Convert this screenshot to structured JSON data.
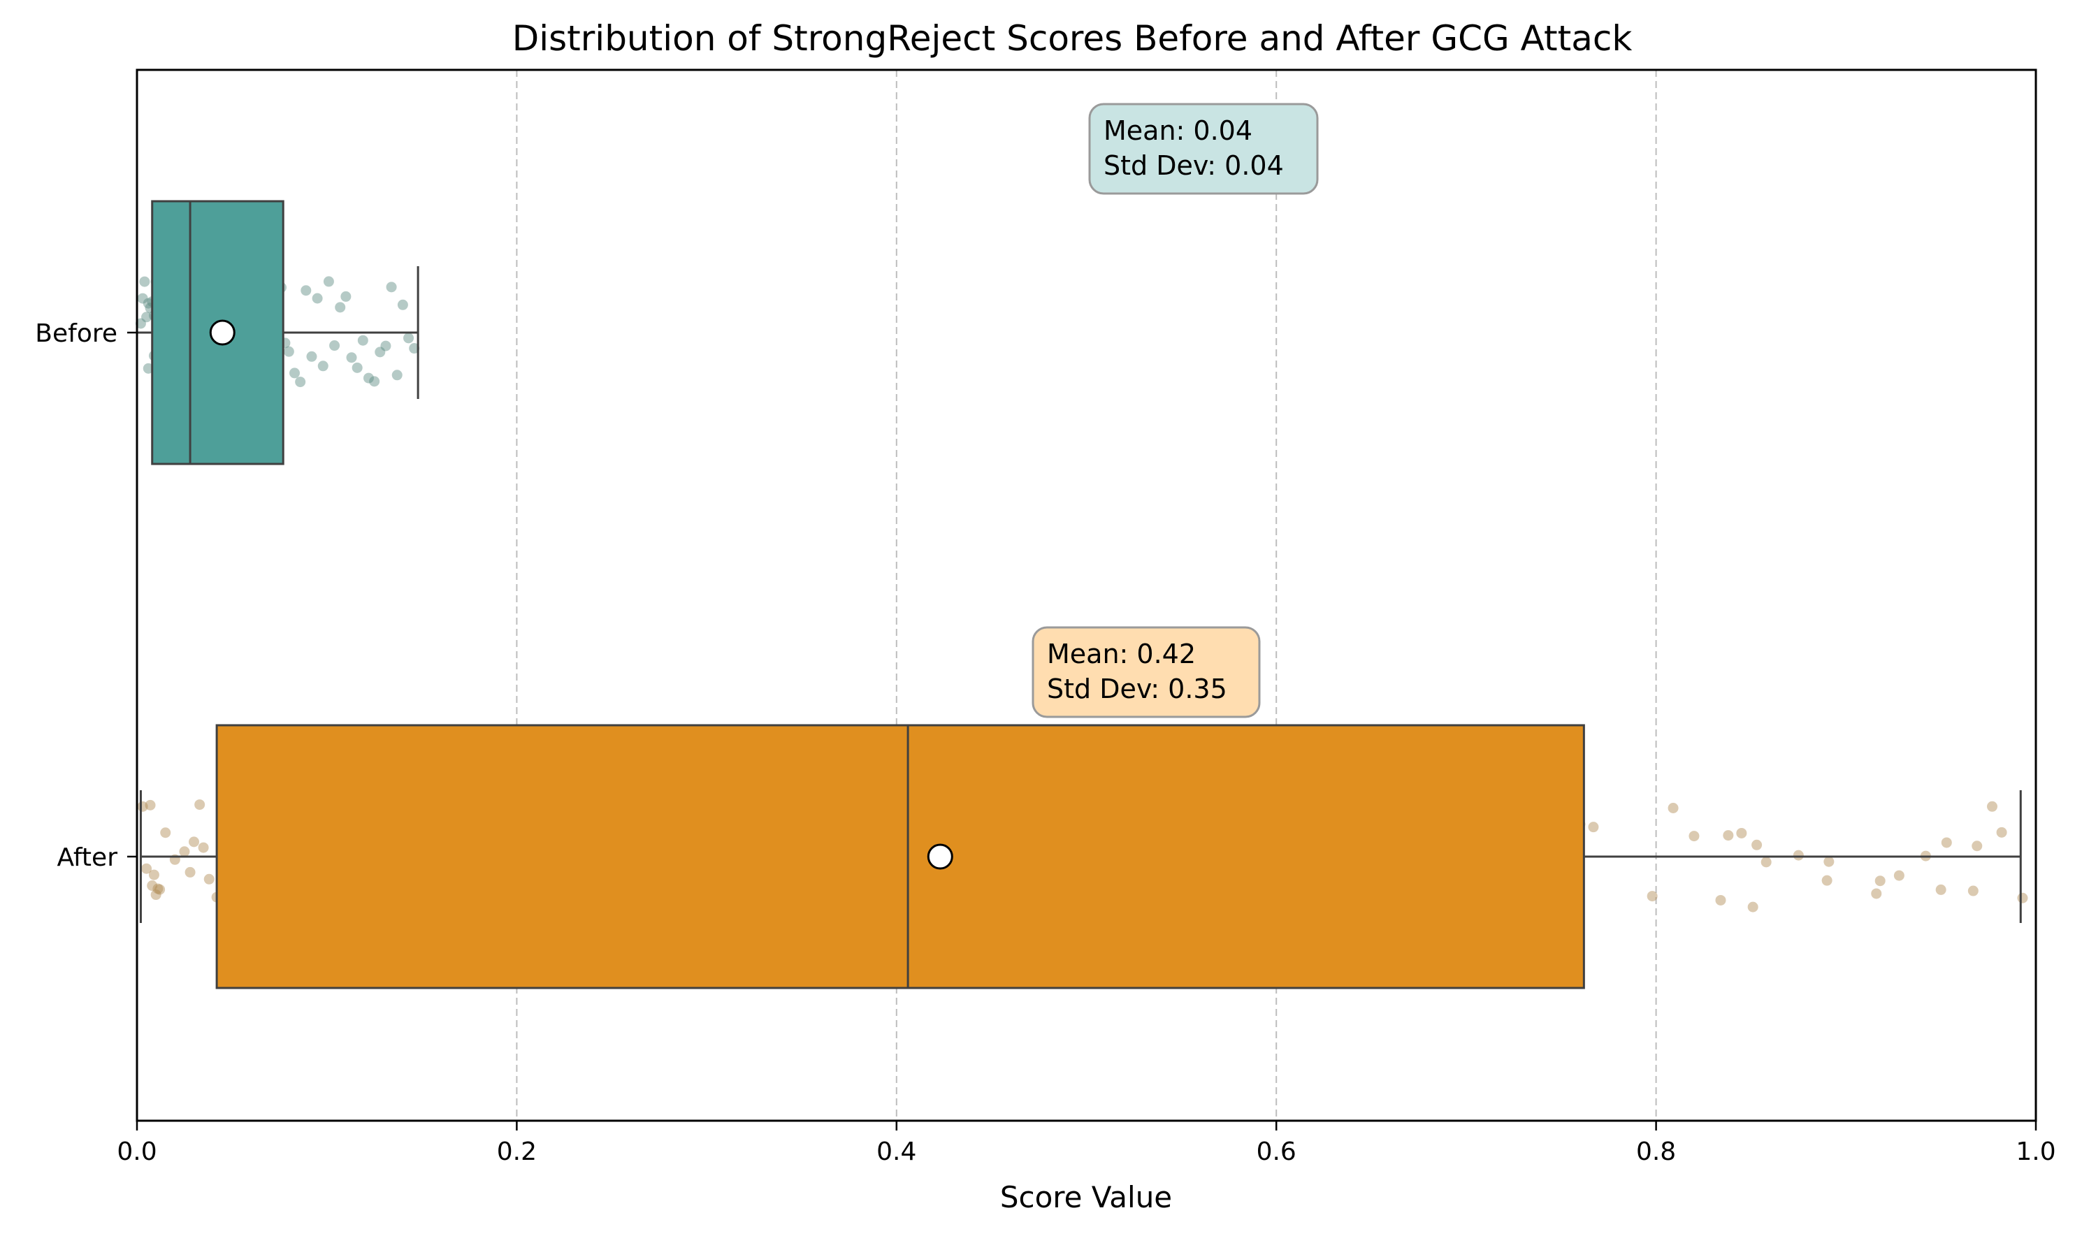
{
  "chart_data": {
    "type": "boxplot",
    "title": "Distribution of StrongReject Scores Before and After GCG Attack",
    "xlabel": "Score Value",
    "ylabel": "",
    "xlim": [
      0.0,
      1.0
    ],
    "x_ticks": [
      "0.0",
      "0.2",
      "0.4",
      "0.6",
      "0.8",
      "1.0"
    ],
    "x_tick_values": [
      0.0,
      0.2,
      0.4,
      0.6,
      0.8,
      1.0
    ],
    "grid": "vertical dashed",
    "orientation": "horizontal",
    "groups": [
      {
        "name": "Before",
        "color": "#4E9F99",
        "point_color": "#5B8A80",
        "box_stat_color": "#C9E4E3",
        "whisker_low": 0.0,
        "q1": 0.008,
        "median": 0.028,
        "q3": 0.077,
        "whisker_high": 0.148,
        "mean": 0.045,
        "mean_label": "Mean: 0.04",
        "std_label": "Std Dev: 0.04",
        "points": [
          0.002,
          0.004,
          0.005,
          0.006,
          0.007,
          0.008,
          0.009,
          0.01,
          0.011,
          0.012,
          0.013,
          0.014,
          0.015,
          0.016,
          0.017,
          0.018,
          0.019,
          0.02,
          0.021,
          0.022,
          0.023,
          0.024,
          0.025,
          0.026,
          0.027,
          0.028,
          0.029,
          0.03,
          0.031,
          0.032,
          0.033,
          0.034,
          0.035,
          0.036,
          0.037,
          0.038,
          0.039,
          0.04,
          0.041,
          0.042,
          0.043,
          0.044,
          0.045,
          0.046,
          0.047,
          0.048,
          0.049,
          0.05,
          0.052,
          0.054,
          0.056,
          0.058,
          0.06,
          0.062,
          0.064,
          0.066,
          0.068,
          0.07,
          0.072,
          0.074,
          0.076,
          0.078,
          0.08,
          0.083,
          0.086,
          0.089,
          0.092,
          0.095,
          0.098,
          0.101,
          0.104,
          0.107,
          0.11,
          0.113,
          0.116,
          0.119,
          0.122,
          0.125,
          0.128,
          0.131,
          0.134,
          0.137,
          0.14,
          0.143,
          0.146,
          0.003,
          0.006,
          0.009,
          0.012,
          0.015,
          0.018,
          0.021,
          0.024,
          0.027,
          0.03,
          0.033,
          0.036,
          0.039,
          0.042,
          0.045
        ]
      },
      {
        "name": "After",
        "color": "#E08F1F",
        "point_color": "#B08A52",
        "box_stat_color": "#FFDDB0",
        "whisker_low": 0.002,
        "q1": 0.042,
        "median": 0.406,
        "q3": 0.762,
        "whisker_high": 0.992,
        "mean": 0.423,
        "mean_label": "Mean: 0.42",
        "std_label": "Std Dev: 0.35",
        "points": [
          0.003,
          0.005,
          0.007,
          0.008,
          0.009,
          0.01,
          0.011,
          0.012,
          0.015,
          0.02,
          0.025,
          0.028,
          0.03,
          0.033,
          0.035,
          0.038,
          0.042,
          0.045,
          0.05,
          0.068,
          0.085,
          0.098,
          0.121,
          0.125,
          0.14,
          0.155,
          0.178,
          0.19,
          0.206,
          0.235,
          0.268,
          0.278,
          0.28,
          0.308,
          0.374,
          0.398,
          0.4,
          0.403,
          0.405,
          0.408,
          0.494,
          0.503,
          0.511,
          0.52,
          0.521,
          0.533,
          0.546,
          0.55,
          0.563,
          0.58,
          0.581,
          0.589,
          0.591,
          0.592,
          0.6,
          0.626,
          0.628,
          0.636,
          0.655,
          0.722,
          0.742,
          0.76,
          0.767,
          0.798,
          0.809,
          0.82,
          0.834,
          0.838,
          0.845,
          0.851,
          0.853,
          0.858,
          0.875,
          0.89,
          0.891,
          0.916,
          0.918,
          0.928,
          0.942,
          0.95,
          0.953,
          0.967,
          0.969,
          0.977,
          0.982,
          0.993
        ]
      }
    ]
  }
}
